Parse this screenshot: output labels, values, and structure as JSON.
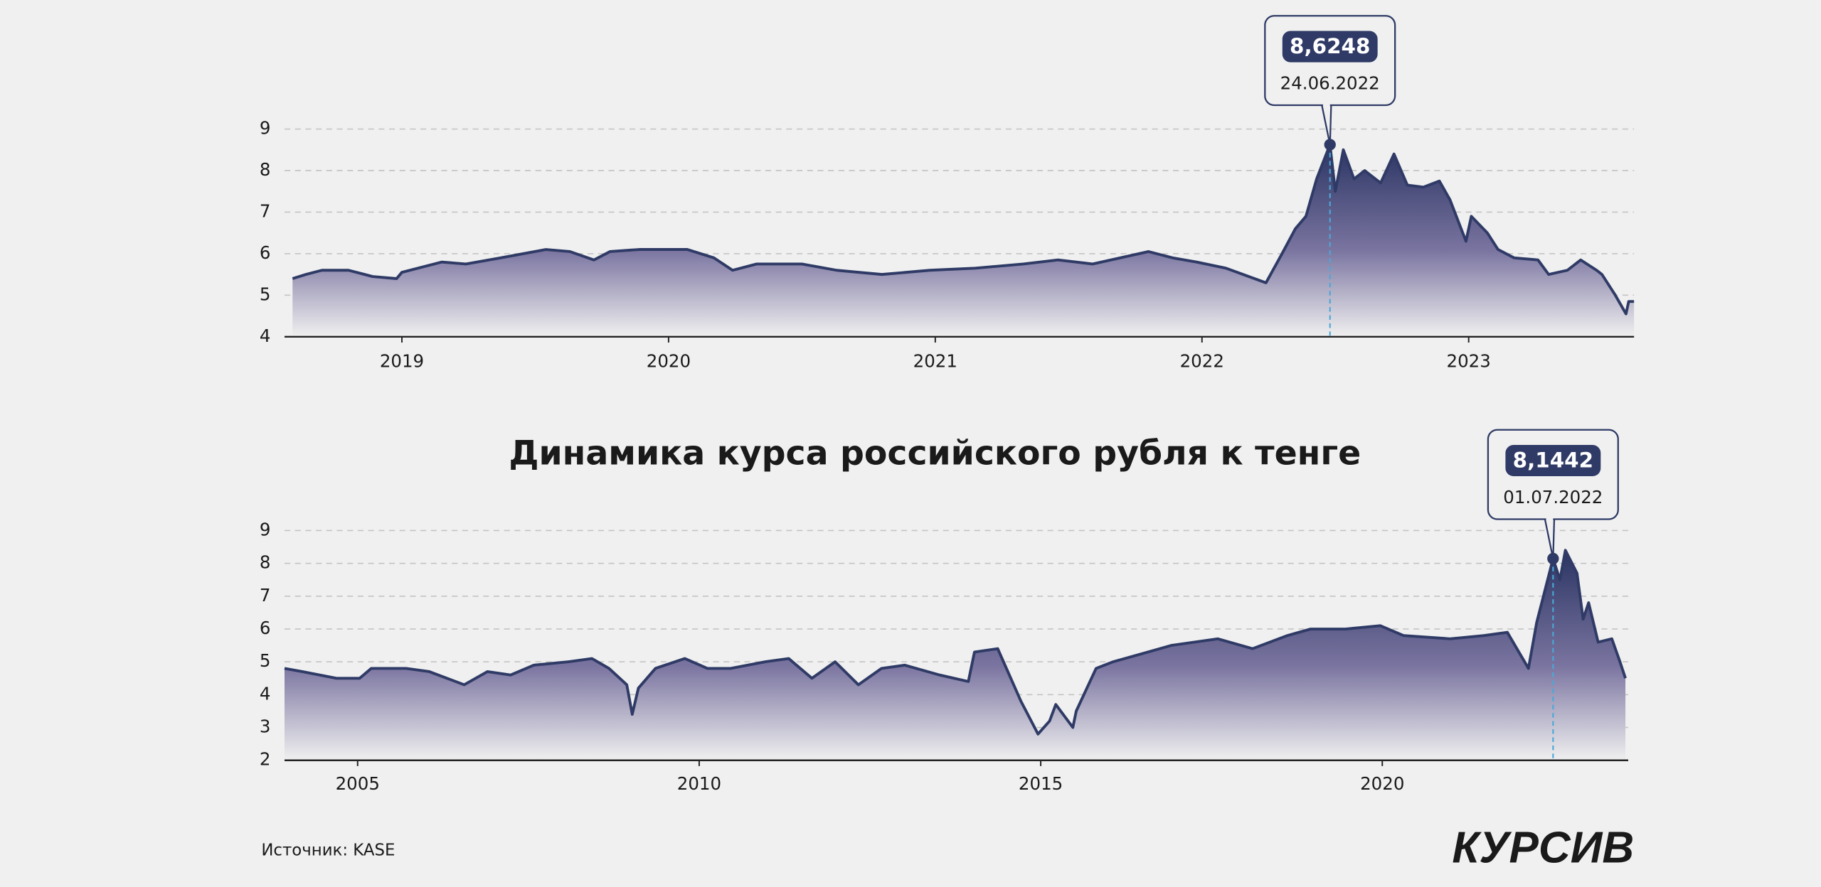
{
  "page": {
    "title": "Динамика курса российского рубля к тенге",
    "source": "Источник: KASE",
    "logo": "КУРСИВ"
  },
  "chart_data": [
    {
      "type": "area",
      "color": "#2f3b66",
      "grid": true,
      "x": [
        2018.59,
        2018.64,
        2018.7,
        2018.8,
        2018.89,
        2018.98,
        2019.0,
        2019.15,
        2019.24,
        2019.37,
        2019.54,
        2019.63,
        2019.72,
        2019.78,
        2019.89,
        2020.07,
        2020.17,
        2020.24,
        2020.33,
        2020.5,
        2020.63,
        2020.8,
        2020.98,
        2021.15,
        2021.33,
        2021.46,
        2021.59,
        2021.8,
        2021.89,
        2021.98,
        2022.09,
        2022.24,
        2022.3,
        2022.35,
        2022.39,
        2022.43,
        2022.48,
        2022.5,
        2022.53,
        2022.57,
        2022.61,
        2022.67,
        2022.72,
        2022.77,
        2022.83,
        2022.89,
        2022.93,
        2022.99,
        2023.01,
        2023.07,
        2023.11,
        2023.17,
        2023.26,
        2023.3,
        2023.37,
        2023.42,
        2023.48,
        2023.5,
        2023.55,
        2023.59,
        2023.6,
        2023.62
      ],
      "values": [
        5.4,
        5.5,
        5.6,
        5.6,
        5.45,
        5.4,
        5.55,
        5.8,
        5.75,
        5.9,
        6.1,
        6.05,
        5.85,
        6.05,
        6.1,
        6.1,
        5.9,
        5.6,
        5.75,
        5.75,
        5.6,
        5.5,
        5.6,
        5.65,
        5.75,
        5.85,
        5.75,
        6.05,
        5.9,
        5.8,
        5.65,
        5.3,
        6.0,
        6.6,
        6.9,
        7.8,
        8.6248,
        7.5,
        8.5,
        7.8,
        8.0,
        7.7,
        8.4,
        7.65,
        7.6,
        7.75,
        7.3,
        6.3,
        6.9,
        6.5,
        6.1,
        5.9,
        5.85,
        5.5,
        5.6,
        5.85,
        5.6,
        5.5,
        5.0,
        4.55,
        4.85,
        4.85
      ],
      "xlim": [
        2018.56,
        2023.62
      ],
      "xticks": [
        2019,
        2020,
        2021,
        2022,
        2023
      ],
      "ylim": [
        4,
        9
      ],
      "yticks": [
        4,
        5,
        6,
        7,
        8,
        9
      ],
      "annotation": {
        "x": 2022.48,
        "y": 8.6248,
        "value_label": "8,6248",
        "date": "24.06.2022"
      }
    },
    {
      "type": "area",
      "color": "#2f3b66",
      "grid": true,
      "x": [
        2003.93,
        2004.19,
        2004.69,
        2005.03,
        2005.2,
        2005.71,
        2006.05,
        2006.56,
        2006.9,
        2007.24,
        2007.58,
        2008.09,
        2008.43,
        2008.68,
        2008.94,
        2009.02,
        2009.11,
        2009.36,
        2009.79,
        2010.12,
        2010.46,
        2010.97,
        2011.31,
        2011.65,
        2011.99,
        2012.33,
        2012.67,
        2013.01,
        2013.52,
        2013.94,
        2014.03,
        2014.37,
        2014.71,
        2014.96,
        2015.13,
        2015.22,
        2015.47,
        2015.52,
        2015.81,
        2016.06,
        2016.57,
        2016.91,
        2017.59,
        2018.1,
        2018.61,
        2018.95,
        2019.46,
        2019.97,
        2020.31,
        2020.99,
        2021.49,
        2021.83,
        2022.14,
        2022.26,
        2022.5,
        2022.6,
        2022.68,
        2022.85,
        2022.94,
        2023.02,
        2023.16,
        2023.36,
        2023.48,
        2023.56
      ],
      "values": [
        4.8,
        4.7,
        4.5,
        4.5,
        4.8,
        4.8,
        4.7,
        4.3,
        4.7,
        4.6,
        4.9,
        5.0,
        5.1,
        4.8,
        4.3,
        3.4,
        4.2,
        4.8,
        5.1,
        4.8,
        4.8,
        5.0,
        5.1,
        4.5,
        5.0,
        4.3,
        4.8,
        4.9,
        4.6,
        4.4,
        5.3,
        5.4,
        3.8,
        2.8,
        3.2,
        3.7,
        3.0,
        3.5,
        4.8,
        5.0,
        5.3,
        5.5,
        5.7,
        5.4,
        5.8,
        6.0,
        6.0,
        6.1,
        5.8,
        5.7,
        5.8,
        5.9,
        4.8,
        6.2,
        8.1442,
        7.5,
        8.4,
        7.7,
        6.3,
        6.8,
        5.6,
        5.7,
        5.0,
        4.5
      ],
      "xlim": [
        2003.93,
        2023.6
      ],
      "xticks": [
        2005,
        2010,
        2015,
        2020
      ],
      "ylim": [
        2,
        9
      ],
      "yticks": [
        2,
        3,
        4,
        5,
        6,
        7,
        8,
        9
      ],
      "annotation": {
        "x": 2022.5,
        "y": 8.1442,
        "value_label": "8,1442",
        "date": "01.07.2022"
      }
    }
  ]
}
